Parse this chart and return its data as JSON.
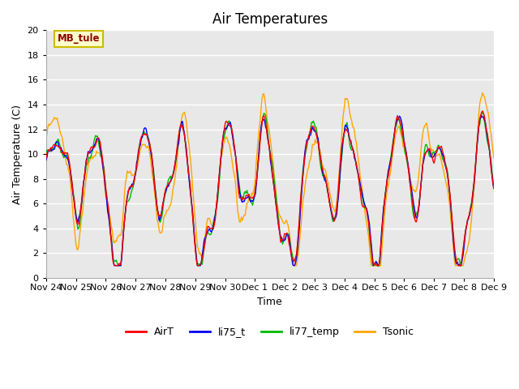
{
  "title": "Air Temperatures",
  "ylabel": "Air Temperature (C)",
  "xlabel": "Time",
  "ylim": [
    0,
    20
  ],
  "annotation": "MB_tule",
  "annotation_fgcolor": "#8B0000",
  "annotation_bgcolor": "#FFFFCC",
  "annotation_edgecolor": "#CCBB00",
  "plot_bgcolor": "#E8E8E8",
  "fig_bgcolor": "#FFFFFF",
  "grid_color": "#FFFFFF",
  "series_colors": {
    "AirT": "#FF0000",
    "li75_t": "#0000EE",
    "li77_temp": "#00BB00",
    "Tsonic": "#FFA500"
  },
  "xtick_labels": [
    "Nov 24",
    "Nov 25",
    "Nov 26",
    "Nov 27",
    "Nov 28",
    "Nov 29",
    "Nov 30",
    "Dec 1",
    "Dec 2",
    "Dec 3",
    "Dec 4",
    "Dec 5",
    "Dec 6",
    "Dec 7",
    "Dec 8",
    "Dec 9"
  ],
  "ytick_vals": [
    0,
    2,
    4,
    6,
    8,
    10,
    12,
    14,
    16,
    18,
    20
  ],
  "line_width": 1.0,
  "title_fontsize": 12,
  "label_fontsize": 9,
  "tick_fontsize": 8,
  "legend_fontsize": 9,
  "n_points": 480
}
